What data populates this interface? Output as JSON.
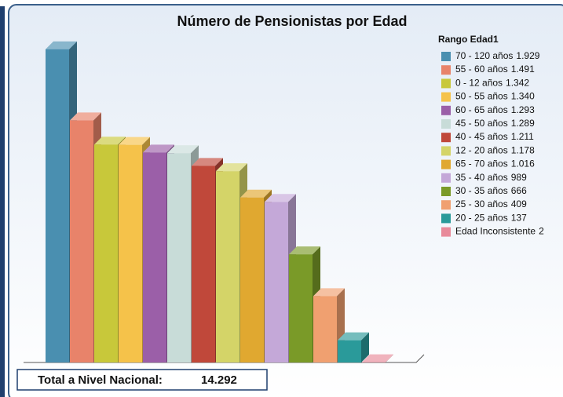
{
  "chart_data": {
    "type": "bar",
    "title": "Número de Pensionistas por Edad",
    "legend_title": "Rango Edad1",
    "categories": [
      "70 - 120 años",
      "55 - 60 años",
      "0 - 12 años",
      "50 - 55 años",
      "60 - 65 años",
      "45 - 50 años",
      "40 - 45 años",
      "12 - 20 años",
      "65 - 70 años",
      "35 - 40 años",
      "30 - 35 años",
      "25 - 30 años",
      "20 - 25 años",
      "Edad Inconsistente"
    ],
    "values": [
      1929,
      1491,
      1342,
      1340,
      1293,
      1289,
      1211,
      1178,
      1016,
      989,
      666,
      409,
      137,
      2
    ],
    "value_labels": [
      "1.929",
      "1.491",
      "1.342",
      "1.340",
      "1.293",
      "1.289",
      "1.211",
      "1.178",
      "1.016",
      "989",
      "666",
      "409",
      "137",
      "2"
    ],
    "colors": [
      "#4a8fb0",
      "#e8836a",
      "#c8c83a",
      "#f5c24a",
      "#9b5fa8",
      "#c8dcd8",
      "#c0483a",
      "#d4d468",
      "#e0a830",
      "#c4a8d8",
      "#7a9a28",
      "#f0a070",
      "#2a9a9a",
      "#e88a9a"
    ],
    "ylim": [
      0,
      2000
    ],
    "legend": "right"
  },
  "footer": {
    "label": "Total a Nivel Nacional:",
    "total": "14.292"
  }
}
